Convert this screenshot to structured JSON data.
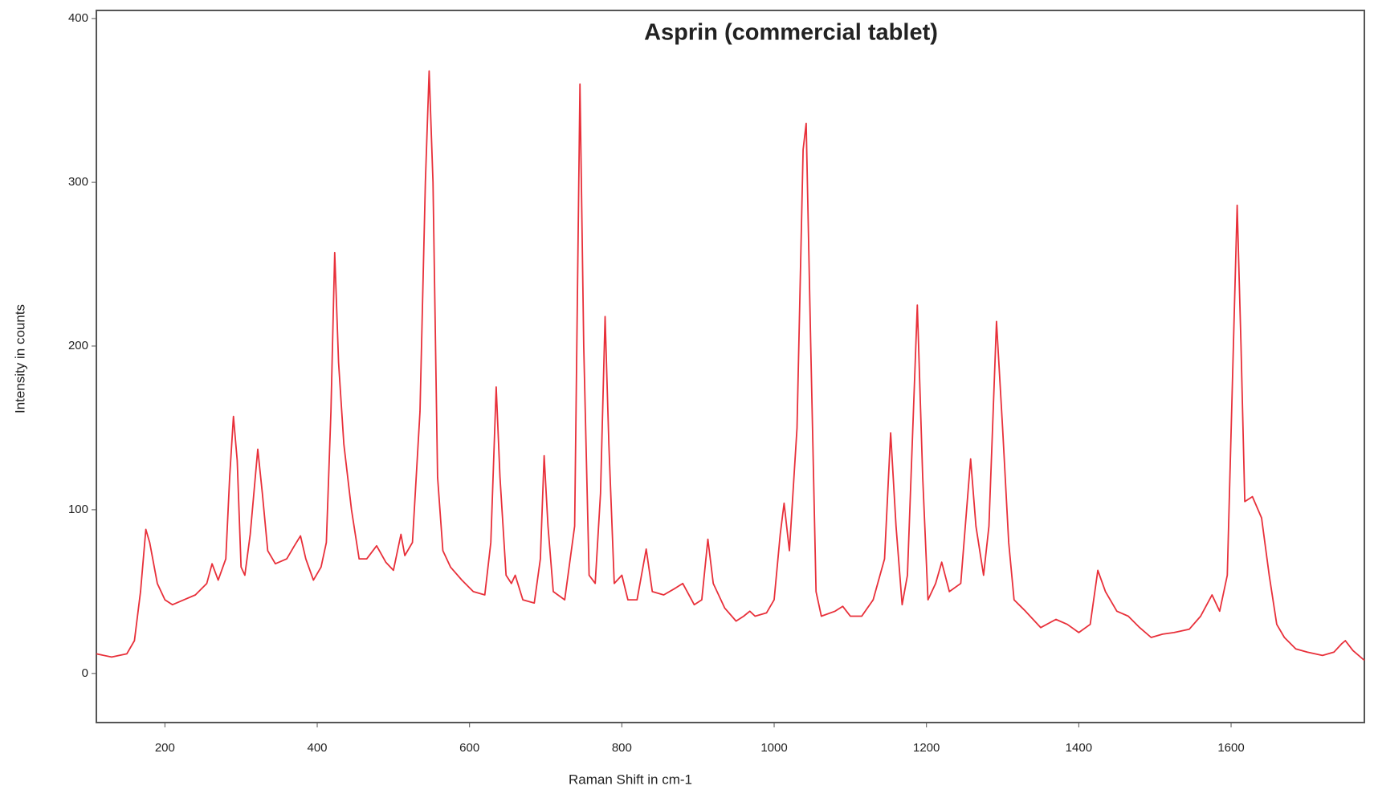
{
  "chart_data": {
    "type": "line",
    "title": "Asprin (commercial tablet)",
    "x_label": "Raman Shift in cm-1",
    "y_label": "Intensity in counts",
    "color": "#e8303a",
    "x": [
      110,
      130,
      150,
      160,
      168,
      175,
      180,
      190,
      200,
      210,
      225,
      240,
      255,
      262,
      270,
      280,
      285,
      290,
      295,
      300,
      305,
      312,
      322,
      328,
      335,
      345,
      360,
      370,
      378,
      385,
      395,
      405,
      412,
      418,
      423,
      428,
      435,
      445,
      455,
      465,
      478,
      490,
      500,
      510,
      515,
      525,
      535,
      542,
      547,
      552,
      558,
      565,
      575,
      590,
      605,
      620,
      628,
      635,
      640,
      648,
      655,
      660,
      670,
      685,
      693,
      698,
      703,
      710,
      725,
      738,
      745,
      750,
      757,
      765,
      772,
      778,
      783,
      790,
      800,
      808,
      820,
      832,
      840,
      855,
      870,
      880,
      895,
      905,
      913,
      920,
      935,
      950,
      960,
      968,
      975,
      990,
      1000,
      1008,
      1013,
      1020,
      1030,
      1038,
      1042,
      1048,
      1055,
      1062,
      1080,
      1090,
      1100,
      1115,
      1130,
      1145,
      1153,
      1160,
      1168,
      1175,
      1188,
      1195,
      1202,
      1212,
      1220,
      1230,
      1245,
      1258,
      1265,
      1275,
      1282,
      1292,
      1300,
      1308,
      1315,
      1330,
      1350,
      1370,
      1385,
      1400,
      1415,
      1425,
      1435,
      1450,
      1465,
      1480,
      1495,
      1510,
      1525,
      1545,
      1560,
      1575,
      1585,
      1595,
      1603,
      1608,
      1613,
      1618,
      1628,
      1640,
      1650,
      1660,
      1670,
      1685,
      1700,
      1720,
      1735,
      1745,
      1750,
      1760,
      1775
    ],
    "values": [
      12,
      10,
      12,
      20,
      50,
      88,
      80,
      55,
      45,
      42,
      45,
      48,
      55,
      67,
      57,
      70,
      120,
      157,
      130,
      65,
      60,
      85,
      137,
      110,
      75,
      67,
      70,
      78,
      84,
      70,
      57,
      65,
      80,
      160,
      257,
      190,
      140,
      100,
      70,
      70,
      78,
      68,
      63,
      85,
      72,
      80,
      160,
      300,
      368,
      300,
      120,
      75,
      65,
      57,
      50,
      48,
      80,
      175,
      120,
      60,
      55,
      60,
      45,
      43,
      70,
      133,
      90,
      50,
      45,
      90,
      360,
      200,
      60,
      55,
      110,
      218,
      140,
      55,
      60,
      45,
      45,
      76,
      50,
      48,
      52,
      55,
      42,
      45,
      82,
      55,
      40,
      32,
      35,
      38,
      35,
      37,
      45,
      85,
      104,
      75,
      150,
      320,
      336,
      200,
      50,
      35,
      38,
      41,
      35,
      35,
      45,
      70,
      147,
      90,
      42,
      60,
      225,
      120,
      45,
      55,
      68,
      50,
      55,
      131,
      90,
      60,
      90,
      215,
      150,
      80,
      45,
      38,
      28,
      33,
      30,
      25,
      30,
      63,
      50,
      38,
      35,
      28,
      22,
      24,
      25,
      27,
      35,
      48,
      38,
      60,
      200,
      286,
      200,
      105,
      108,
      95,
      60,
      30,
      22,
      15,
      13,
      11,
      13,
      18,
      20,
      14,
      8
    ],
    "xlim": [
      110,
      1775
    ],
    "ylim": [
      -30,
      405
    ],
    "xticks": [
      200,
      400,
      600,
      800,
      1000,
      1200,
      1400,
      1600
    ],
    "yticks": [
      0,
      100,
      200,
      300,
      400
    ]
  }
}
